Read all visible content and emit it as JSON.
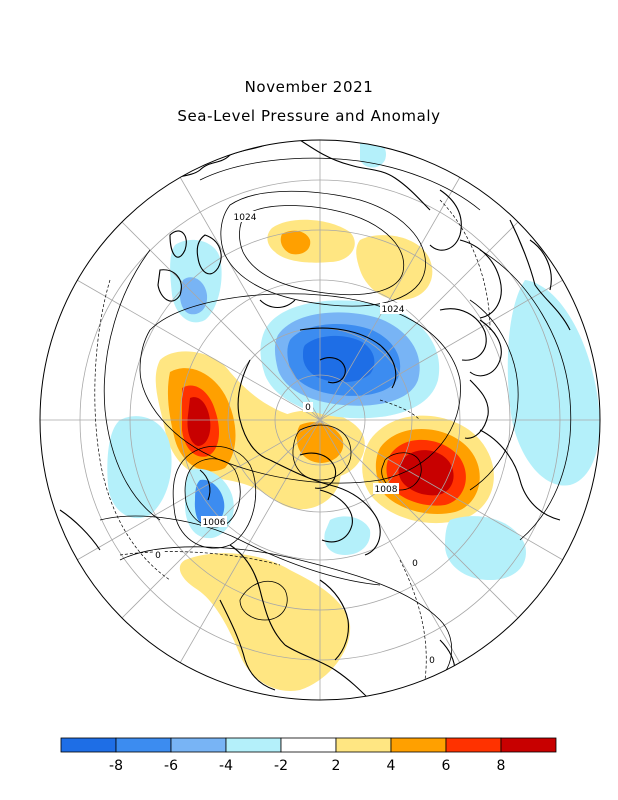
{
  "title": "November 2021",
  "subtitle": "Sea-Level Pressure and Anomaly",
  "contour_labels": [
    "1024",
    "1024",
    "1008",
    "1006",
    "0",
    "0",
    "0",
    "0"
  ],
  "colorbar": {
    "bins": [
      {
        "color": "#1e6ee6"
      },
      {
        "color": "#3c8cf0"
      },
      {
        "color": "#78b4f5"
      },
      {
        "color": "#b4f0fa"
      },
      {
        "color": "#ffffff"
      },
      {
        "color": "#ffe682"
      },
      {
        "color": "#ffa000"
      },
      {
        "color": "#ff3200"
      },
      {
        "color": "#c80000"
      }
    ],
    "tick_labels": [
      "-8",
      "-6",
      "-4",
      "-2",
      "2",
      "4",
      "6",
      "8"
    ]
  },
  "palette": {
    "strong_negative": "#1e6ee6",
    "negative": "#3c8cf0",
    "weak_negative": "#78b4f5",
    "slight_negative": "#b4f0fa",
    "slight_positive": "#ffe682",
    "positive": "#ffa000",
    "strong_positive": "#ff3200",
    "extreme_positive": "#c80000"
  }
}
